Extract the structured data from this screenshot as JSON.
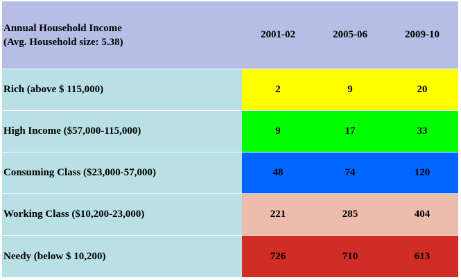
{
  "header": {
    "title_line1": "Annual Household Income",
    "title_line2": "(Avg. Household size: 5.38)",
    "years": [
      "2001-02",
      "2005-06",
      "2009-10"
    ]
  },
  "rows": [
    {
      "label": "Rich (above $ 115,000)",
      "values": [
        "2",
        "9",
        "20"
      ],
      "color": "#ffff00"
    },
    {
      "label": "High Income ($57,000-115,000)",
      "values": [
        "9",
        "17",
        "33"
      ],
      "color": "#00ff00"
    },
    {
      "label": "Consuming Class ($23,000-57,000)",
      "values": [
        "48",
        "74",
        "120"
      ],
      "color": "#0066ff"
    },
    {
      "label": "Working Class ($10,200-23,000)",
      "values": [
        "221",
        "285",
        "404"
      ],
      "color": "#ecbcac"
    },
    {
      "label": "Needy (below $ 10,200)",
      "values": [
        "726",
        "710",
        "613"
      ],
      "color": "#d12c25"
    }
  ],
  "colors": {
    "header_bg": "#b6bee6",
    "label_bg": "#b9e0e5"
  }
}
